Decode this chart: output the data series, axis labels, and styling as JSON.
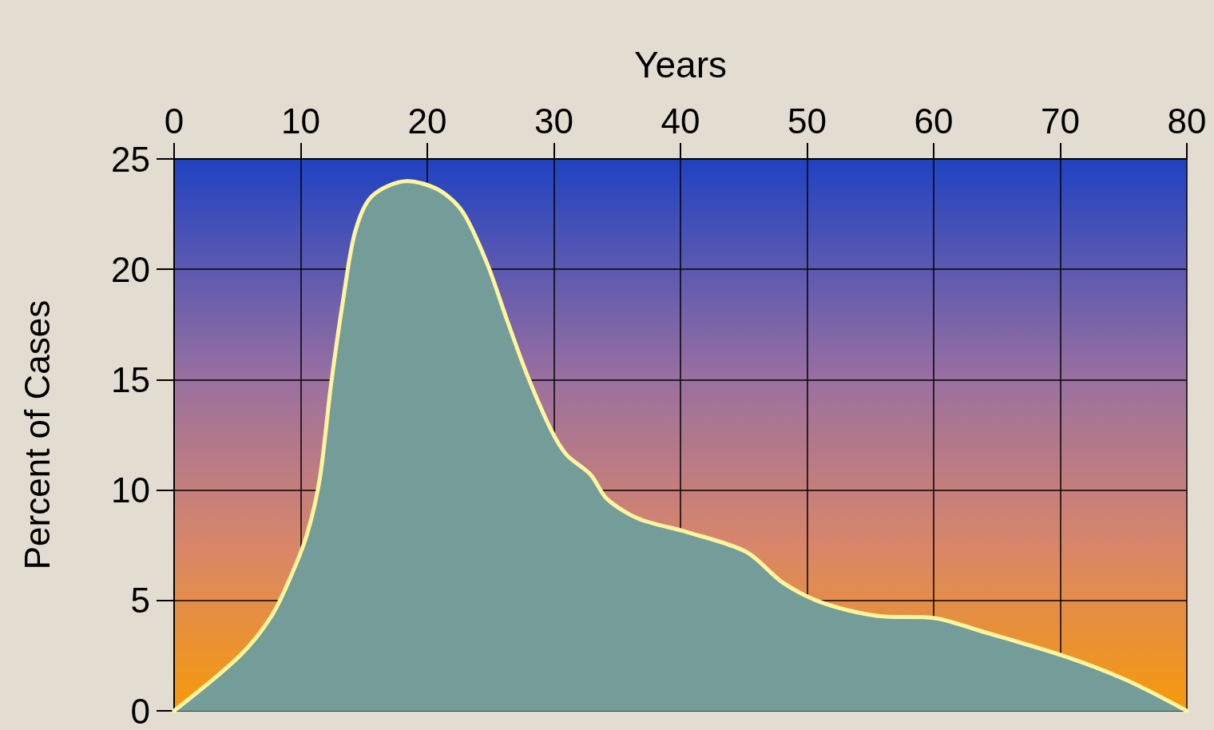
{
  "chart_data": {
    "type": "area",
    "xlabel": "Years",
    "ylabel": "Percent of Cases",
    "x": [
      0,
      5.2,
      7.7,
      9.3,
      10.5,
      11.5,
      12.4,
      13.4,
      14.3,
      15.6,
      18.4,
      20.9,
      22.8,
      24.7,
      26.3,
      27.9,
      29.8,
      31.0,
      32.9,
      34.2,
      36.7,
      40.5,
      45.2,
      48.1,
      51.2,
      55.6,
      60.1,
      63.8,
      70.2,
      75.2,
      80
    ],
    "series": [
      {
        "color": "#749d9a",
        "values": [
          0,
          2.5,
          4.3,
          6.2,
          8.0,
          10.5,
          14.8,
          18.8,
          21.7,
          23.3,
          24.0,
          23.6,
          22.6,
          20.3,
          17.7,
          15.2,
          12.7,
          11.6,
          10.7,
          9.6,
          8.7,
          8.1,
          7.2,
          5.8,
          4.9,
          4.3,
          4.2,
          3.6,
          2.5,
          1.4,
          0
        ]
      }
    ],
    "xlim": [
      0,
      80
    ],
    "xticks": [
      0,
      10,
      20,
      30,
      40,
      50,
      60,
      70,
      80
    ],
    "ylim": [
      0,
      25
    ],
    "yticks": [
      0,
      5,
      10,
      15,
      20,
      25
    ],
    "grid": true,
    "marker": "none",
    "line_style": "solid"
  }
}
